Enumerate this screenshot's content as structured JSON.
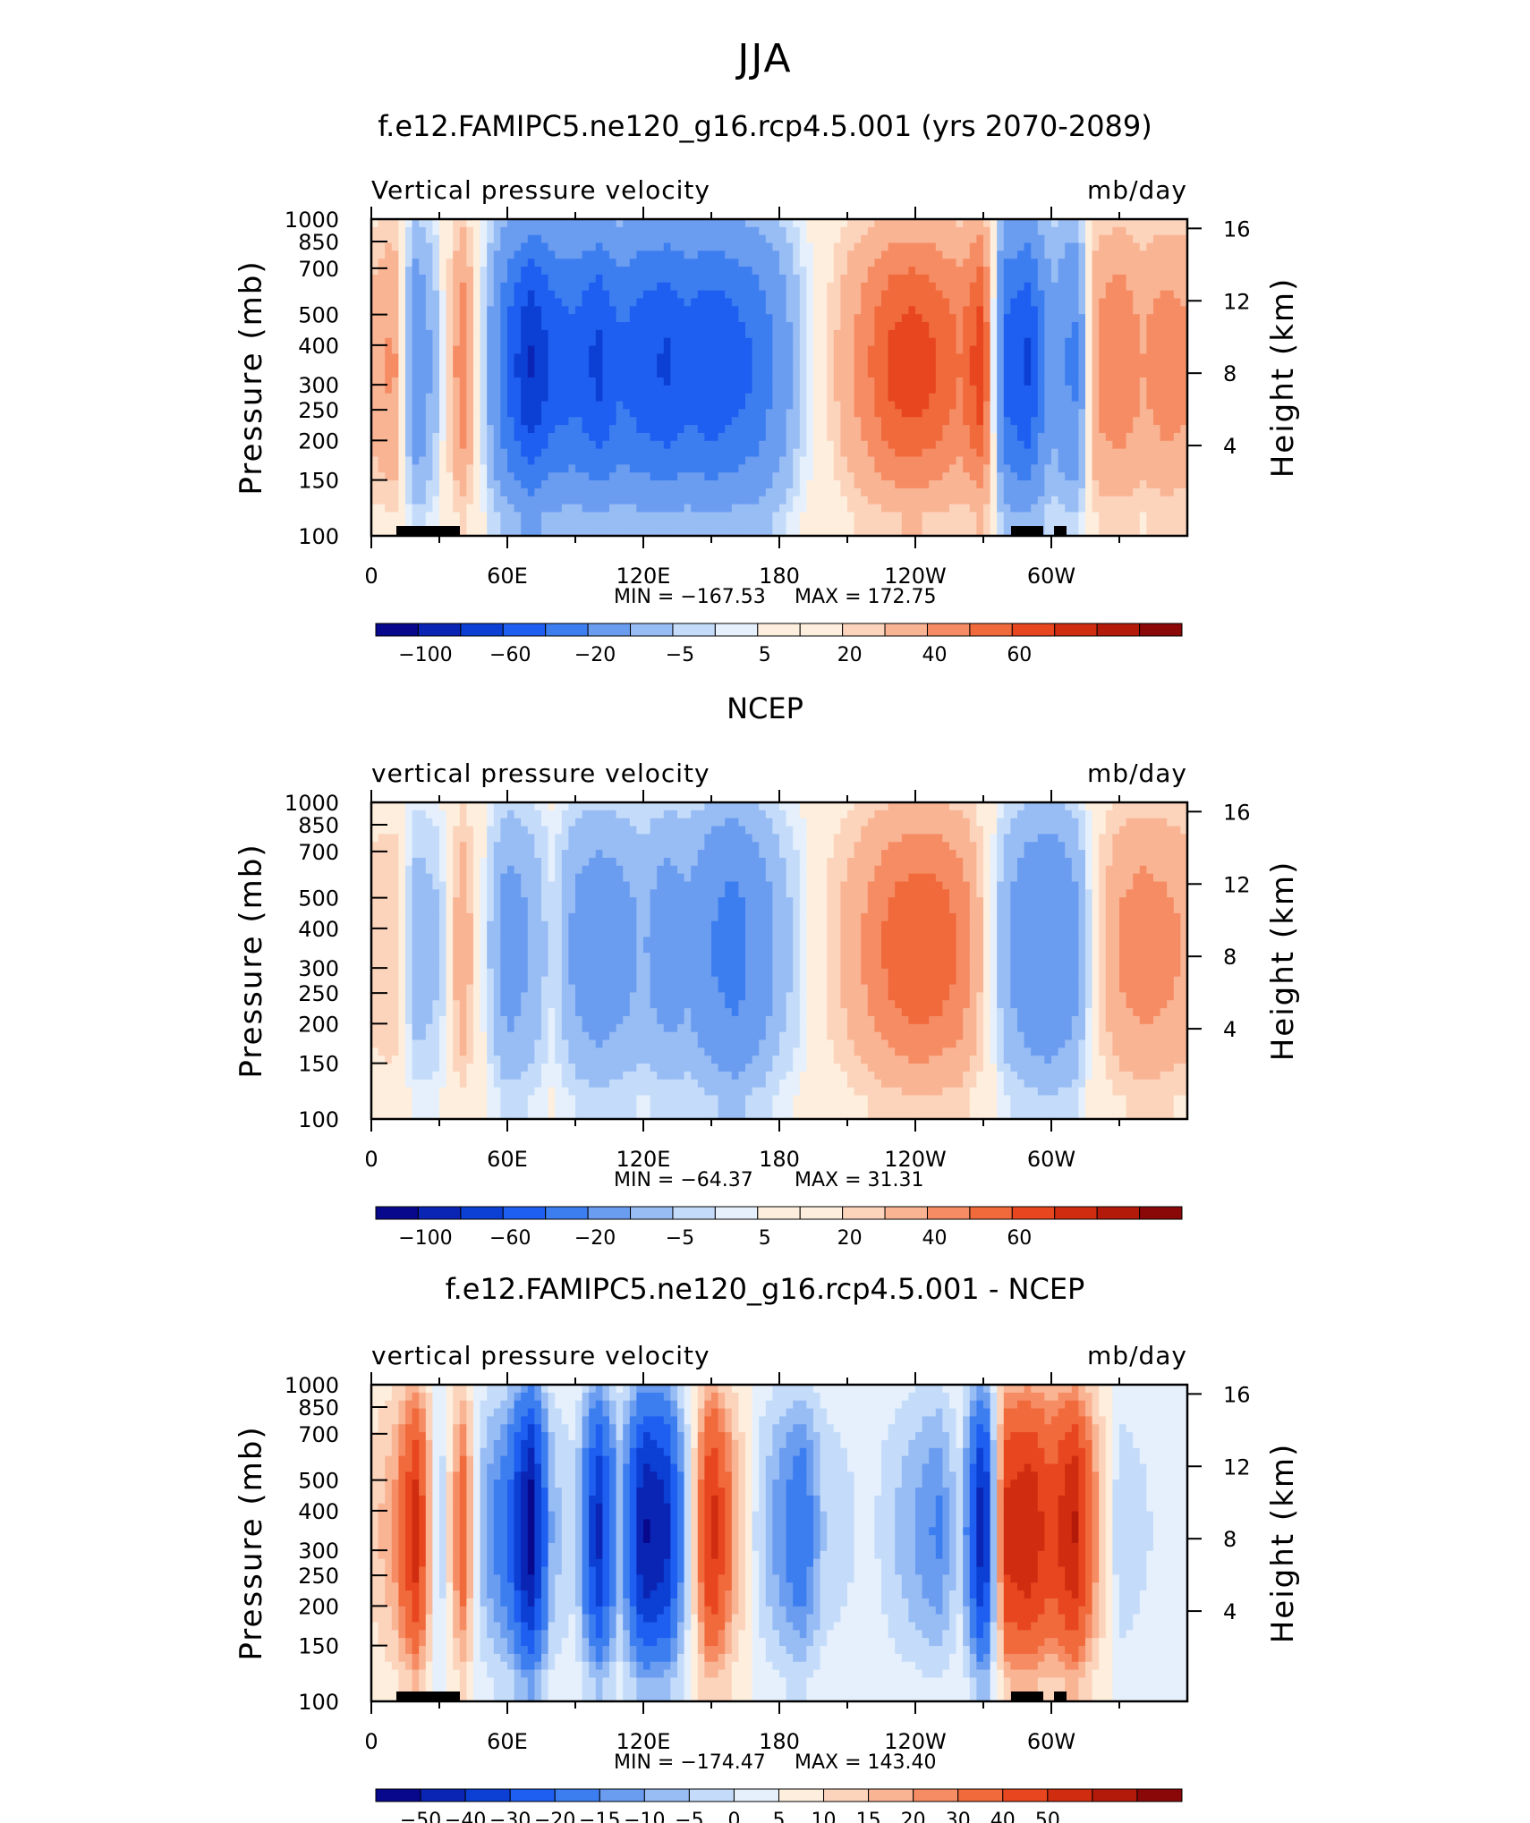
{
  "page": {
    "title": "JJA"
  },
  "units_label": "mb/day",
  "axes": {
    "left_label": "Pressure (mb)",
    "right_label": "Height (km)",
    "pressure_ticks": [
      "100",
      "150",
      "200",
      "250",
      "300",
      "400",
      "500",
      "700",
      "850",
      "1000"
    ],
    "pressure_values": [
      100,
      150,
      200,
      250,
      300,
      400,
      500,
      700,
      850,
      1000
    ],
    "height_ticks": [
      "16",
      "12",
      "8",
      "4"
    ],
    "height_values": [
      16,
      12,
      8,
      4
    ],
    "x_ticks": [
      "0",
      "60E",
      "120E",
      "180",
      "120W",
      "60W"
    ],
    "x_values": [
      0,
      60,
      120,
      180,
      240,
      300
    ],
    "x_range": [
      0,
      360
    ],
    "y_range": [
      1000,
      100
    ]
  },
  "colors": {
    "scale": [
      "#08088c",
      "#0a24b4",
      "#0c3fd4",
      "#1e5ef0",
      "#3c7ef0",
      "#6a9cf0",
      "#98bcf4",
      "#c4dcfa",
      "#e6f0fd",
      "#fdeedd",
      "#fcd4bc",
      "#f9b494",
      "#f68c64",
      "#f06a3c",
      "#e8461e",
      "#d02c10",
      "#b41a0a",
      "#8a0808"
    ]
  },
  "chart_data": [
    {
      "type": "heatmap",
      "title": "f.e12.FAMIPC5.ne120_g16.rcp4.5.001 (yrs 2070-2089)",
      "subtitle": "Vertical pressure velocity",
      "units": "mb/day",
      "min_label": "MIN = −167.53",
      "max_label": "MAX = 172.75",
      "min": -167.53,
      "max": 172.75,
      "colorbar_labels": [
        "−100",
        "−60",
        "−20",
        "−5",
        "5",
        "20",
        "40",
        "60"
      ],
      "colorbar_levels": [
        -120,
        -100,
        -80,
        -60,
        -40,
        -20,
        -10,
        -5,
        -2,
        2,
        5,
        10,
        20,
        30,
        40,
        50,
        60,
        70
      ],
      "profile_x": [
        0,
        10,
        20,
        30,
        40,
        50,
        60,
        70,
        80,
        90,
        100,
        110,
        120,
        130,
        140,
        150,
        160,
        170,
        180,
        190,
        200,
        210,
        220,
        230,
        240,
        250,
        260,
        270,
        280,
        290,
        300,
        310,
        320,
        330,
        340,
        350,
        360
      ],
      "profile_values": [
        8,
        14,
        -22,
        -5,
        18,
        -6,
        -38,
        -62,
        -45,
        -40,
        -52,
        -38,
        -45,
        -50,
        -42,
        -48,
        -42,
        -35,
        -20,
        -5,
        2,
        10,
        18,
        26,
        28,
        24,
        18,
        30,
        -40,
        -50,
        -15,
        -28,
        14,
        18,
        12,
        16,
        14
      ],
      "profile_scale": 1.5,
      "topography": true
    },
    {
      "type": "heatmap",
      "title": "NCEP",
      "subtitle": "vertical pressure velocity",
      "units": "mb/day",
      "min_label": "MIN = −64.37",
      "max_label": "MAX =   31.31",
      "min": -64.37,
      "max": 31.31,
      "colorbar_labels": [
        "−100",
        "−60",
        "−20",
        "−5",
        "5",
        "20",
        "40",
        "60"
      ],
      "colorbar_levels": [
        -120,
        -100,
        -80,
        -60,
        -40,
        -20,
        -10,
        -5,
        -2,
        2,
        5,
        10,
        20,
        30,
        40,
        50,
        60,
        70
      ],
      "profile_x": [
        0,
        10,
        20,
        30,
        40,
        50,
        60,
        70,
        80,
        90,
        100,
        110,
        120,
        130,
        140,
        150,
        160,
        170,
        180,
        190,
        200,
        210,
        220,
        230,
        240,
        250,
        260,
        270,
        280,
        290,
        300,
        310,
        320,
        330,
        340,
        350,
        360
      ],
      "profile_values": [
        6,
        8,
        -12,
        -8,
        14,
        -3,
        -22,
        -15,
        -4,
        -18,
        -24,
        -20,
        -14,
        -22,
        -18,
        -30,
        -38,
        -26,
        -12,
        -4,
        4,
        10,
        18,
        26,
        30,
        28,
        22,
        6,
        -14,
        -26,
        -30,
        -20,
        4,
        16,
        20,
        18,
        14
      ],
      "profile_scale": 1.2,
      "topography": false
    },
    {
      "type": "heatmap",
      "title": "f.e12.FAMIPC5.ne120_g16.rcp4.5.001 - NCEP",
      "subtitle": "vertical pressure velocity",
      "units": "mb/day",
      "min_label": "MIN = −174.47",
      "max_label": "MAX = 143.40",
      "min": -174.47,
      "max": 143.4,
      "colorbar_labels": [
        "−50",
        "−40",
        "−30",
        "−20",
        "−15",
        "−10",
        "−5",
        "0",
        "5",
        "10",
        "15",
        "20",
        "30",
        "40",
        "50"
      ],
      "colorbar_levels": [
        -60,
        -50,
        -40,
        -30,
        -20,
        -15,
        -10,
        -5,
        0,
        5,
        10,
        15,
        20,
        30,
        40,
        50,
        60
      ],
      "profile_x": [
        0,
        10,
        20,
        30,
        40,
        50,
        60,
        70,
        80,
        90,
        100,
        110,
        120,
        130,
        140,
        150,
        160,
        170,
        180,
        190,
        200,
        210,
        220,
        230,
        240,
        250,
        260,
        270,
        280,
        290,
        300,
        310,
        320,
        330,
        340,
        350,
        360
      ],
      "profile_values": [
        4,
        10,
        30,
        -8,
        18,
        -10,
        -18,
        -45,
        -8,
        -4,
        -35,
        -8,
        -40,
        -35,
        -4,
        30,
        10,
        -4,
        -12,
        -18,
        -6,
        -4,
        -2,
        -6,
        -10,
        -14,
        -4,
        -40,
        28,
        32,
        22,
        34,
        10,
        -6,
        -4,
        -2,
        0
      ],
      "profile_scale": 1.4,
      "topography": true
    }
  ]
}
